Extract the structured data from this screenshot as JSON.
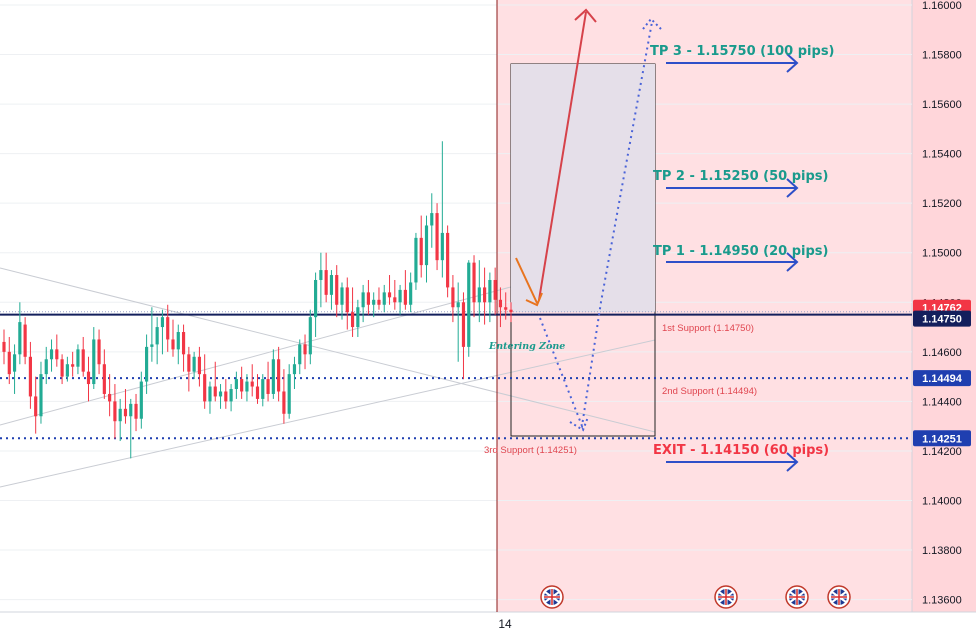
{
  "chart_data": {
    "type": "candlestick",
    "y_axis": {
      "min": 1.1355,
      "max": 1.1602,
      "ticks": [
        "1.15800",
        "1.15600",
        "1.15400",
        "1.15200",
        "1.15000",
        "1.14800",
        "1.14600",
        "1.14400",
        "1.14200",
        "1.14000",
        "1.13800",
        "1.13600"
      ],
      "top_partial_tick": "1.16000"
    },
    "x_axis": {
      "labels": [
        "14"
      ]
    },
    "price_badges": [
      {
        "text": "1.14762",
        "value": 1.14762,
        "color": "#f23645"
      },
      {
        "text": "1.14750",
        "value": 1.1475,
        "color": "#131f5c"
      },
      {
        "text": "1.14494",
        "value": 1.14494,
        "color": "#1f3fb0"
      },
      {
        "text": "1.14251",
        "value": 1.14251,
        "color": "#1f3fb0"
      }
    ],
    "horizontal_levels": [
      {
        "value": 1.1475,
        "style": "solid",
        "color": "#131f5c"
      },
      {
        "value": 1.14494,
        "style": "dotted",
        "color": "#1f3fb0"
      },
      {
        "value": 1.14251,
        "style": "dotted",
        "color": "#1f3fb0"
      }
    ],
    "candles": [
      {
        "o": 1.1464,
        "h": 1.1469,
        "l": 1.1455,
        "c": 1.146
      },
      {
        "o": 1.146,
        "h": 1.1466,
        "l": 1.1447,
        "c": 1.1451
      },
      {
        "o": 1.1452,
        "h": 1.1463,
        "l": 1.1443,
        "c": 1.1459
      },
      {
        "o": 1.1459,
        "h": 1.148,
        "l": 1.1455,
        "c": 1.1472
      },
      {
        "o": 1.1471,
        "h": 1.1474,
        "l": 1.1455,
        "c": 1.1458
      },
      {
        "o": 1.1458,
        "h": 1.1464,
        "l": 1.1437,
        "c": 1.1442
      },
      {
        "o": 1.1442,
        "h": 1.145,
        "l": 1.1427,
        "c": 1.1434
      },
      {
        "o": 1.1434,
        "h": 1.1456,
        "l": 1.1431,
        "c": 1.1451
      },
      {
        "o": 1.1451,
        "h": 1.1462,
        "l": 1.1447,
        "c": 1.1457
      },
      {
        "o": 1.1457,
        "h": 1.1465,
        "l": 1.1452,
        "c": 1.1461
      },
      {
        "o": 1.1461,
        "h": 1.1467,
        "l": 1.1454,
        "c": 1.1457
      },
      {
        "o": 1.1457,
        "h": 1.1459,
        "l": 1.1447,
        "c": 1.145
      },
      {
        "o": 1.145,
        "h": 1.1458,
        "l": 1.1448,
        "c": 1.1455
      },
      {
        "o": 1.1455,
        "h": 1.146,
        "l": 1.145,
        "c": 1.1454
      },
      {
        "o": 1.1454,
        "h": 1.1463,
        "l": 1.1451,
        "c": 1.1461
      },
      {
        "o": 1.1461,
        "h": 1.1466,
        "l": 1.145,
        "c": 1.1452
      },
      {
        "o": 1.1452,
        "h": 1.1458,
        "l": 1.144,
        "c": 1.1447
      },
      {
        "o": 1.1447,
        "h": 1.147,
        "l": 1.1445,
        "c": 1.1465
      },
      {
        "o": 1.1465,
        "h": 1.1469,
        "l": 1.1451,
        "c": 1.1455
      },
      {
        "o": 1.1455,
        "h": 1.1461,
        "l": 1.1441,
        "c": 1.1443
      },
      {
        "o": 1.1443,
        "h": 1.1451,
        "l": 1.1434,
        "c": 1.144
      },
      {
        "o": 1.144,
        "h": 1.1447,
        "l": 1.1425,
        "c": 1.1432
      },
      {
        "o": 1.1432,
        "h": 1.1441,
        "l": 1.1424,
        "c": 1.1437
      },
      {
        "o": 1.1437,
        "h": 1.1445,
        "l": 1.1431,
        "c": 1.1434
      },
      {
        "o": 1.1434,
        "h": 1.1441,
        "l": 1.1417,
        "c": 1.1439
      },
      {
        "o": 1.1439,
        "h": 1.1443,
        "l": 1.1428,
        "c": 1.1433
      },
      {
        "o": 1.1433,
        "h": 1.1452,
        "l": 1.1429,
        "c": 1.1448
      },
      {
        "o": 1.1448,
        "h": 1.1467,
        "l": 1.1443,
        "c": 1.1462
      },
      {
        "o": 1.1462,
        "h": 1.1478,
        "l": 1.1456,
        "c": 1.1463
      },
      {
        "o": 1.1463,
        "h": 1.1474,
        "l": 1.1455,
        "c": 1.147
      },
      {
        "o": 1.147,
        "h": 1.1477,
        "l": 1.1459,
        "c": 1.1474
      },
      {
        "o": 1.1474,
        "h": 1.1479,
        "l": 1.146,
        "c": 1.1465
      },
      {
        "o": 1.1465,
        "h": 1.1473,
        "l": 1.1458,
        "c": 1.1461
      },
      {
        "o": 1.1461,
        "h": 1.1471,
        "l": 1.1455,
        "c": 1.1468
      },
      {
        "o": 1.1468,
        "h": 1.1471,
        "l": 1.1452,
        "c": 1.1459
      },
      {
        "o": 1.1459,
        "h": 1.1462,
        "l": 1.1444,
        "c": 1.1452
      },
      {
        "o": 1.1452,
        "h": 1.146,
        "l": 1.1449,
        "c": 1.1458
      },
      {
        "o": 1.1458,
        "h": 1.1462,
        "l": 1.1446,
        "c": 1.1451
      },
      {
        "o": 1.1451,
        "h": 1.1459,
        "l": 1.1437,
        "c": 1.144
      },
      {
        "o": 1.144,
        "h": 1.1448,
        "l": 1.1435,
        "c": 1.1446
      },
      {
        "o": 1.1446,
        "h": 1.1456,
        "l": 1.144,
        "c": 1.1442
      },
      {
        "o": 1.1442,
        "h": 1.1447,
        "l": 1.1437,
        "c": 1.1444
      },
      {
        "o": 1.1444,
        "h": 1.1449,
        "l": 1.1437,
        "c": 1.144
      },
      {
        "o": 1.144,
        "h": 1.1447,
        "l": 1.1436,
        "c": 1.1445
      },
      {
        "o": 1.1445,
        "h": 1.1452,
        "l": 1.1441,
        "c": 1.1449
      },
      {
        "o": 1.1449,
        "h": 1.1454,
        "l": 1.1441,
        "c": 1.1444
      },
      {
        "o": 1.1444,
        "h": 1.1451,
        "l": 1.144,
        "c": 1.1448
      },
      {
        "o": 1.1448,
        "h": 1.1455,
        "l": 1.1442,
        "c": 1.1446
      },
      {
        "o": 1.1446,
        "h": 1.1451,
        "l": 1.1439,
        "c": 1.1441
      },
      {
        "o": 1.1441,
        "h": 1.1451,
        "l": 1.1438,
        "c": 1.1449
      },
      {
        "o": 1.1449,
        "h": 1.1456,
        "l": 1.144,
        "c": 1.1443
      },
      {
        "o": 1.1443,
        "h": 1.1461,
        "l": 1.1441,
        "c": 1.1457
      },
      {
        "o": 1.1457,
        "h": 1.1462,
        "l": 1.144,
        "c": 1.1444
      },
      {
        "o": 1.1444,
        "h": 1.1453,
        "l": 1.1431,
        "c": 1.1435
      },
      {
        "o": 1.1435,
        "h": 1.1455,
        "l": 1.1433,
        "c": 1.1451
      },
      {
        "o": 1.1451,
        "h": 1.1458,
        "l": 1.1445,
        "c": 1.1455
      },
      {
        "o": 1.1455,
        "h": 1.1465,
        "l": 1.1451,
        "c": 1.1463
      },
      {
        "o": 1.1463,
        "h": 1.1467,
        "l": 1.1453,
        "c": 1.1459
      },
      {
        "o": 1.1459,
        "h": 1.1477,
        "l": 1.1455,
        "c": 1.1474
      },
      {
        "o": 1.1474,
        "h": 1.1492,
        "l": 1.1466,
        "c": 1.1489
      },
      {
        "o": 1.1489,
        "h": 1.15,
        "l": 1.1478,
        "c": 1.1493
      },
      {
        "o": 1.1493,
        "h": 1.15,
        "l": 1.148,
        "c": 1.1483
      },
      {
        "o": 1.1483,
        "h": 1.1493,
        "l": 1.1477,
        "c": 1.1491
      },
      {
        "o": 1.1491,
        "h": 1.1495,
        "l": 1.1474,
        "c": 1.1479
      },
      {
        "o": 1.1479,
        "h": 1.1488,
        "l": 1.1473,
        "c": 1.1486
      },
      {
        "o": 1.1486,
        "h": 1.149,
        "l": 1.1469,
        "c": 1.1476
      },
      {
        "o": 1.1476,
        "h": 1.1486,
        "l": 1.1466,
        "c": 1.147
      },
      {
        "o": 1.147,
        "h": 1.1481,
        "l": 1.1466,
        "c": 1.1478
      },
      {
        "o": 1.1478,
        "h": 1.1487,
        "l": 1.1472,
        "c": 1.1484
      },
      {
        "o": 1.1484,
        "h": 1.1489,
        "l": 1.1475,
        "c": 1.1479
      },
      {
        "o": 1.1479,
        "h": 1.1484,
        "l": 1.1474,
        "c": 1.1481
      },
      {
        "o": 1.1481,
        "h": 1.1486,
        "l": 1.1477,
        "c": 1.1479
      },
      {
        "o": 1.1479,
        "h": 1.1487,
        "l": 1.1476,
        "c": 1.1484
      },
      {
        "o": 1.1484,
        "h": 1.1491,
        "l": 1.1479,
        "c": 1.1482
      },
      {
        "o": 1.1482,
        "h": 1.1489,
        "l": 1.1477,
        "c": 1.148
      },
      {
        "o": 1.148,
        "h": 1.1487,
        "l": 1.1475,
        "c": 1.1485
      },
      {
        "o": 1.1485,
        "h": 1.1493,
        "l": 1.1477,
        "c": 1.1479
      },
      {
        "o": 1.1479,
        "h": 1.1492,
        "l": 1.1476,
        "c": 1.1488
      },
      {
        "o": 1.1488,
        "h": 1.1508,
        "l": 1.1485,
        "c": 1.1506
      },
      {
        "o": 1.1506,
        "h": 1.1515,
        "l": 1.149,
        "c": 1.1495
      },
      {
        "o": 1.1495,
        "h": 1.1515,
        "l": 1.1488,
        "c": 1.1511
      },
      {
        "o": 1.1511,
        "h": 1.1524,
        "l": 1.1502,
        "c": 1.1516
      },
      {
        "o": 1.1516,
        "h": 1.152,
        "l": 1.1493,
        "c": 1.1497
      },
      {
        "o": 1.1497,
        "h": 1.1545,
        "l": 1.149,
        "c": 1.1508
      },
      {
        "o": 1.1508,
        "h": 1.1511,
        "l": 1.1482,
        "c": 1.1486
      },
      {
        "o": 1.1486,
        "h": 1.1491,
        "l": 1.1472,
        "c": 1.1478
      },
      {
        "o": 1.1478,
        "h": 1.1488,
        "l": 1.1456,
        "c": 1.148
      },
      {
        "o": 1.148,
        "h": 1.1484,
        "l": 1.1449,
        "c": 1.1462
      },
      {
        "o": 1.1462,
        "h": 1.1497,
        "l": 1.1458,
        "c": 1.1496
      },
      {
        "o": 1.1496,
        "h": 1.1499,
        "l": 1.1474,
        "c": 1.148
      },
      {
        "o": 1.148,
        "h": 1.1497,
        "l": 1.1472,
        "c": 1.1486
      },
      {
        "o": 1.1486,
        "h": 1.1494,
        "l": 1.1471,
        "c": 1.148
      },
      {
        "o": 1.148,
        "h": 1.1492,
        "l": 1.1472,
        "c": 1.1489
      },
      {
        "o": 1.1489,
        "h": 1.1494,
        "l": 1.1475,
        "c": 1.1481
      },
      {
        "o": 1.1481,
        "h": 1.1486,
        "l": 1.147,
        "c": 1.1478
      },
      {
        "o": 1.1478,
        "h": 1.1484,
        "l": 1.1473,
        "c": 1.1477
      },
      {
        "o": 1.1477,
        "h": 1.148,
        "l": 1.1472,
        "c": 1.1476
      }
    ],
    "annotations": {
      "tp3": "TP 3 - 1.15750 (100 pips)",
      "tp2": "TP 2 - 1.15250 (50 pips)",
      "tp1": "TP 1 - 1.14950 (20 pips)",
      "exit": "EXIT - 1.14150 (60 pips)",
      "support1": "1st Support  (1.14750)",
      "support2": "2nd Support (1.14494)",
      "support3": "3rd Support (1.14251)",
      "entering_zone": "Entering Zone"
    },
    "event_icons": [
      "gb-flag-icon",
      "gb-flag-icon",
      "gb-flag-icon",
      "gb-flag-icon"
    ],
    "colors": {
      "bull": "#22ab94",
      "bear": "#f23645",
      "future_zone": "#ffe0e3",
      "axis_zone": "#ffd4d9",
      "box": "#e3dde9",
      "arrow_red": "#d6424a",
      "arrow_orange": "#e8741f",
      "arrow_blue": "#2e4fc8",
      "dotted_blue": "#4a63d8"
    }
  }
}
